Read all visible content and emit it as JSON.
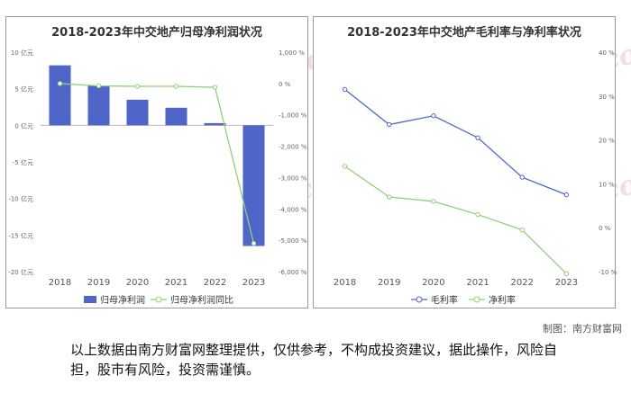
{
  "credit": "制图：南方财富网",
  "disclaimer": "以上数据由南方财富网整理提供，仅供参考，不构成投资建议，据此操作，风险自担，股市有风险，投资需谨慎。",
  "watermark": {
    "cn": "南方财富网",
    "en": "southmoney.com"
  },
  "chart_data": [
    {
      "type": "bar",
      "title": "2018-2023年中交地产归母净利润状况",
      "categories": [
        "2018",
        "2019",
        "2020",
        "2021",
        "2022",
        "2023"
      ],
      "series": [
        {
          "name": "归母净利润",
          "type": "bar",
          "axis": "left",
          "color": "#4f66c8",
          "values": [
            8.2,
            5.4,
            3.5,
            2.4,
            0.3,
            -16.5
          ]
        },
        {
          "name": "归母净利润同比",
          "type": "line",
          "axis": "right",
          "color": "#8fd07a",
          "values": [
            -2,
            -75,
            -90,
            -90,
            -120,
            -5100
          ]
        }
      ],
      "y_left": {
        "ticks": [
          10,
          5,
          0,
          -5,
          -10,
          -15,
          -20
        ],
        "tick_labels": [
          "10 亿元",
          "5 亿元",
          "0 亿元",
          "-5 亿元",
          "-10 亿元",
          "-15 亿元",
          "-20 亿元"
        ],
        "ylim": [
          -20,
          10
        ]
      },
      "y_right": {
        "ticks": [
          1000,
          0,
          -1000,
          -2000,
          -3000,
          -4000,
          -5000,
          -6000
        ],
        "tick_labels": [
          "1,000 %",
          "0 %",
          "-1,000 %",
          "-2,000 %",
          "-3,000 %",
          "-4,000 %",
          "-5,000 %",
          "-6,000 %"
        ],
        "ylim": [
          -6000,
          1000
        ]
      },
      "legend_position": "bottom",
      "grid": false
    },
    {
      "type": "line",
      "title": "2018-2023年中交地产毛利率与净利率状况",
      "categories": [
        "2018",
        "2019",
        "2020",
        "2021",
        "2022",
        "2023"
      ],
      "series": [
        {
          "name": "毛利率",
          "color": "#4f66c8",
          "values": [
            31.5,
            23.5,
            25.5,
            20.5,
            11.5,
            7.5
          ]
        },
        {
          "name": "净利率",
          "color": "#8fd07a",
          "values": [
            14,
            7,
            6,
            3,
            -0.5,
            -10.5
          ]
        }
      ],
      "y_right": {
        "ticks": [
          40,
          30,
          20,
          10,
          0,
          -10
        ],
        "tick_labels": [
          "40 %",
          "30 %",
          "20 %",
          "10 %",
          "0 %",
          "-10 %"
        ],
        "ylim": [
          -10,
          40
        ]
      },
      "legend_position": "bottom",
      "grid": false
    }
  ]
}
